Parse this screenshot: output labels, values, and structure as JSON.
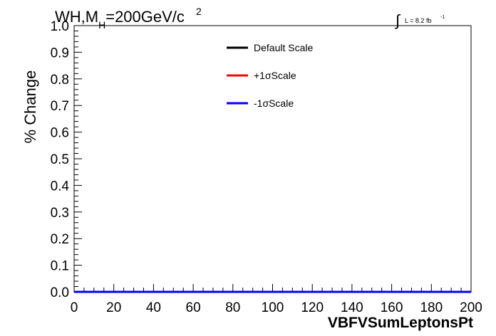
{
  "chart_data": {
    "type": "line",
    "title": {
      "base": "WH,M",
      "sub": "H",
      "rest": "=200GeV/c",
      "sup": "2"
    },
    "lumi": {
      "symbol": "∫",
      "text": "L = 8.2 fb",
      "sup": "-1"
    },
    "xlabel": "VBFVSumLeptonsPt",
    "ylabel": "% Change",
    "xlim": [
      0,
      200
    ],
    "ylim": [
      0,
      1
    ],
    "x_ticks": [
      0,
      20,
      40,
      60,
      80,
      100,
      120,
      140,
      160,
      180,
      200
    ],
    "y_ticks": [
      0.0,
      0.1,
      0.2,
      0.3,
      0.4,
      0.5,
      0.6,
      0.7,
      0.8,
      0.9,
      1.0
    ],
    "y_tick_labels": [
      "0.0",
      "0.1",
      "0.2",
      "0.3",
      "0.4",
      "0.5",
      "0.6",
      "0.7",
      "0.8",
      "0.9",
      "1.0"
    ],
    "x_tick_labels": [
      "0",
      "20",
      "40",
      "60",
      "80",
      "100",
      "120",
      "140",
      "160",
      "180",
      "200"
    ],
    "legend_position": "top-center",
    "series": [
      {
        "name": "Default Scale",
        "color": "#000000",
        "x": [
          0,
          200
        ],
        "y": [
          0,
          0
        ]
      },
      {
        "name": "+1σScale",
        "color": "#ff0000",
        "x": [
          0,
          200
        ],
        "y": [
          0,
          0
        ]
      },
      {
        "name": "-1σScale",
        "color": "#0000ff",
        "x": [
          0,
          200
        ],
        "y": [
          0,
          0
        ]
      }
    ]
  }
}
